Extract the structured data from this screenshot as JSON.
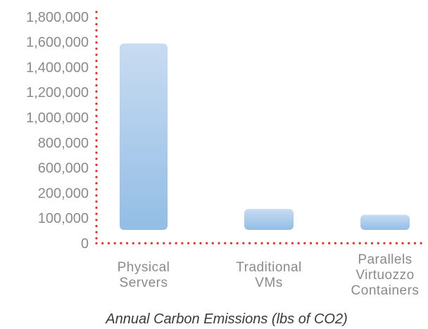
{
  "chart_data": {
    "type": "bar",
    "caption": "Annual Carbon Emissions (lbs of CO2)",
    "categories": [
      [
        "Physical",
        "Servers"
      ],
      [
        "Traditional",
        "VMs"
      ],
      [
        "Parallels",
        "Virtuozzo",
        "Containers"
      ]
    ],
    "values": [
      1600000,
      180000,
      130000
    ],
    "y_ticks": [
      "0",
      "100,000",
      "200,000",
      "600,000",
      "800,000",
      "1,000,000",
      "1,200,000",
      "1,400,000",
      "1,600,000",
      "1,800,000"
    ],
    "grid": false,
    "axis_color": "#e0322a",
    "bar_color_top": "#c8dcf1",
    "bar_color_bottom": "#93bde5"
  }
}
